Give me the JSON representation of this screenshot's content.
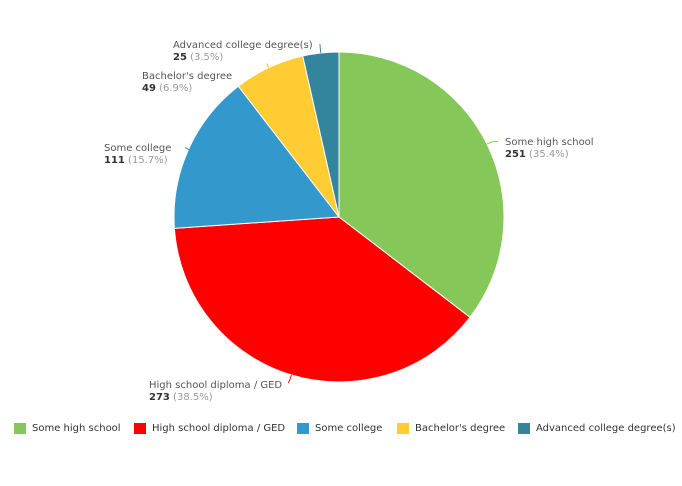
{
  "chart_data": {
    "type": "pie",
    "title": "",
    "legend_placement": "bottom",
    "slices": [
      {
        "label": "Some high school",
        "value": 251,
        "percent_label": "(35.4%)",
        "color": "#86c75a"
      },
      {
        "label": "High school diploma / GED",
        "value": 273,
        "percent_label": "(38.5%)",
        "color": "#ff0000"
      },
      {
        "label": "Some college",
        "value": 111,
        "percent_label": "(15.7%)",
        "color": "#3399cc"
      },
      {
        "label": "Bachelor's degree",
        "value": 49,
        "percent_label": "(6.9%)",
        "color": "#ffcc33"
      },
      {
        "label": "Advanced college degree(s)",
        "value": 25,
        "percent_label": "(3.5%)",
        "color": "#33859d"
      }
    ]
  },
  "legend": {
    "items": [
      {
        "label": "Some high school",
        "color": "#86c75a"
      },
      {
        "label": "High school diploma / GED",
        "color": "#ff0000"
      },
      {
        "label": "Some college",
        "color": "#3399cc"
      },
      {
        "label": "Bachelor's degree",
        "color": "#ffcc33"
      },
      {
        "label": "Advanced college degree(s)",
        "color": "#33859d"
      }
    ]
  }
}
